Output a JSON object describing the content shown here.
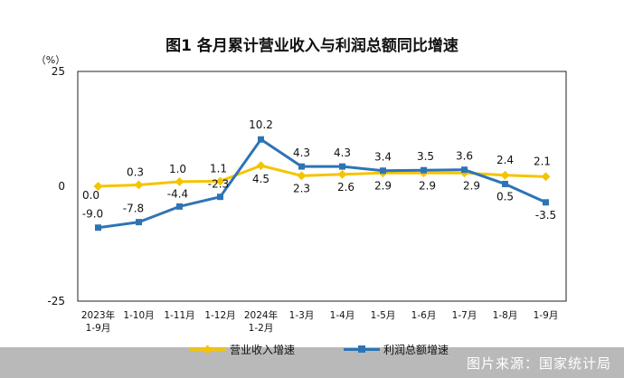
{
  "chart_data": {
    "type": "line",
    "title": "图1  各月累计营业收入与利润总额同比增速",
    "ylabel": "（%）",
    "xlabel": "",
    "ylim": [
      -25,
      25
    ],
    "yticks": [
      -25,
      0,
      25
    ],
    "grid": false,
    "legend_position": "bottom",
    "categories": [
      [
        "2023年",
        "1-9月"
      ],
      [
        "1-10月"
      ],
      [
        "1-11月"
      ],
      [
        "1-12月"
      ],
      [
        "2024年",
        "1-2月"
      ],
      [
        "1-3月"
      ],
      [
        "1-4月"
      ],
      [
        "1-5月"
      ],
      [
        "1-6月"
      ],
      [
        "1-7月"
      ],
      [
        "1-8月"
      ],
      [
        "1-9月"
      ]
    ],
    "series": [
      {
        "name": "营业收入增速",
        "color": "#f5c400",
        "marker": "diamond",
        "values": [
          0.0,
          0.3,
          1.0,
          1.1,
          4.5,
          2.3,
          2.6,
          2.9,
          2.9,
          2.9,
          2.4,
          2.1
        ],
        "labels": [
          "0.0",
          "0.3",
          "1.0",
          "1.1",
          "4.5",
          "2.3",
          "2.6",
          "2.9",
          "2.9",
          "2.9",
          "2.4",
          "2.1"
        ]
      },
      {
        "name": "利润总额增速",
        "color": "#2e74b5",
        "marker": "square",
        "values": [
          -9.0,
          -7.8,
          -4.4,
          -2.3,
          10.2,
          4.3,
          4.3,
          3.4,
          3.5,
          3.6,
          0.5,
          -3.5
        ],
        "labels": [
          "-9.0",
          "-7.8",
          "-4.4",
          "-2.3",
          "10.2",
          "4.3",
          "4.3",
          "3.4",
          "3.5",
          "3.6",
          "0.5",
          "-3.5"
        ]
      }
    ]
  },
  "source_label": "图片来源：国家统计局"
}
